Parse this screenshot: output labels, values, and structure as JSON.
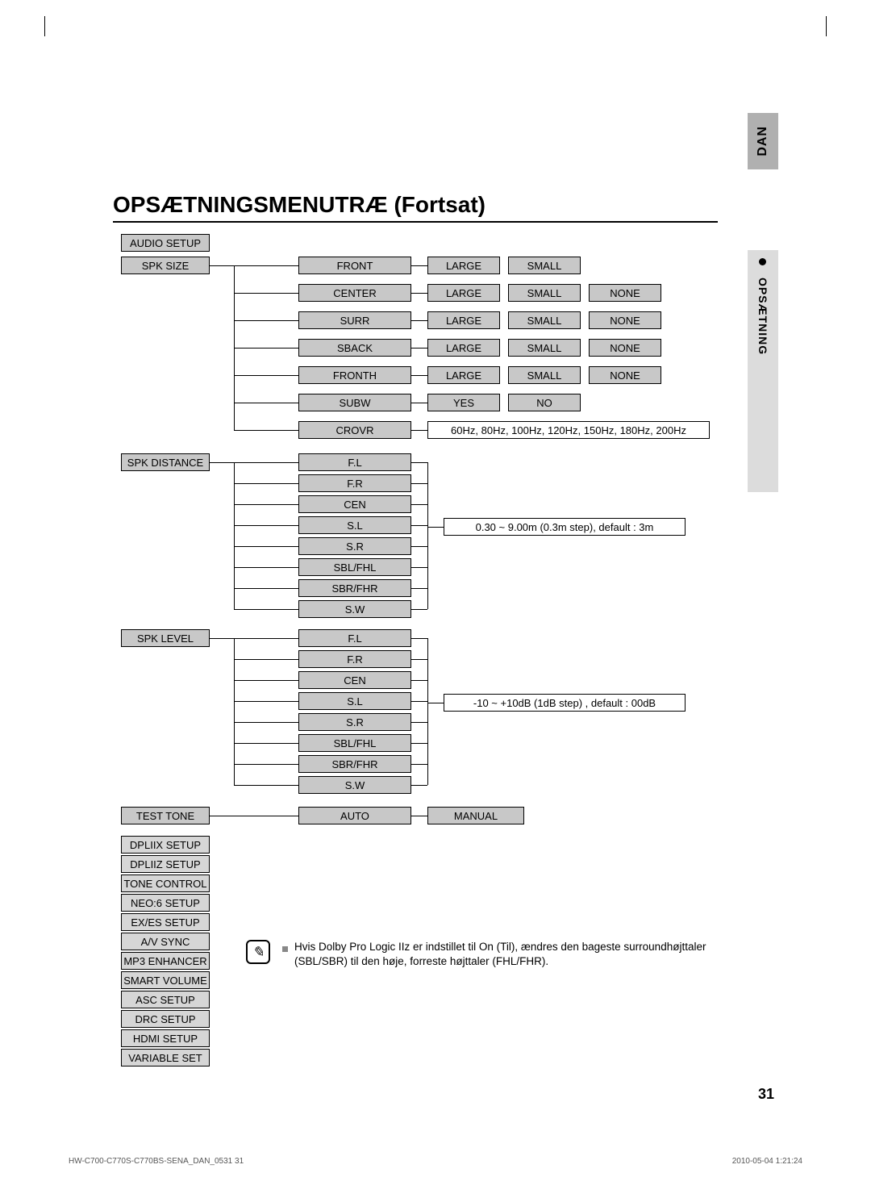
{
  "lang_tab": "DAN",
  "side_label": "OPSÆTNING",
  "heading": "OPSÆTNINGSMENUTRÆ (Fortsat)",
  "root": "AUDIO SETUP",
  "spk_size": {
    "label": "SPK SIZE",
    "rows": [
      {
        "name": "FRONT",
        "opts": [
          "LARGE",
          "SMALL"
        ]
      },
      {
        "name": "CENTER",
        "opts": [
          "LARGE",
          "SMALL",
          "NONE"
        ]
      },
      {
        "name": "SURR",
        "opts": [
          "LARGE",
          "SMALL",
          "NONE"
        ]
      },
      {
        "name": "SBACK",
        "opts": [
          "LARGE",
          "SMALL",
          "NONE"
        ]
      },
      {
        "name": "FRONTH",
        "opts": [
          "LARGE",
          "SMALL",
          "NONE"
        ]
      },
      {
        "name": "SUBW",
        "opts": [
          "YES",
          "NO"
        ]
      },
      {
        "name": "CROVR",
        "wide": "60Hz, 80Hz, 100Hz, 120Hz, 150Hz, 180Hz, 200Hz"
      }
    ]
  },
  "spk_distance": {
    "label": "SPK DISTANCE",
    "items": [
      "F.L",
      "F.R",
      "CEN",
      "S.L",
      "S.R",
      "SBL/FHL",
      "SBR/FHR",
      "S.W"
    ],
    "range": "0.30 ~ 9.00m (0.3m step), default : 3m"
  },
  "spk_level": {
    "label": "SPK LEVEL",
    "items": [
      "F.L",
      "F.R",
      "CEN",
      "S.L",
      "S.R",
      "SBL/FHL",
      "SBR/FHR",
      "S.W"
    ],
    "range": "-10 ~ +10dB (1dB step) , default : 00dB"
  },
  "test_tone": {
    "label": "TEST TONE",
    "opts": [
      "AUTO",
      "MANUAL"
    ]
  },
  "tail": [
    "DPLIIX SETUP",
    "DPLIIZ SETUP",
    "TONE CONTROL",
    "NEO:6 SETUP",
    "EX/ES SETUP",
    "A/V SYNC",
    "MP3 ENHANCER",
    "SMART VOLUME",
    "ASC SETUP",
    "DRC SETUP",
    "HDMI SETUP",
    "VARIABLE SET"
  ],
  "note_line1": "Hvis Dolby Pro Logic IIz er indstillet til On (Til), ændres den bageste surroundhøjttaler",
  "note_line2": "(SBL/SBR) til den høje, forreste højttaler (FHL/FHR).",
  "page_num": "31",
  "footer_left": "HW-C700-C770S-C770BS-SENA_DAN_0531   31",
  "footer_right": "2010-05-04   1:21:24"
}
